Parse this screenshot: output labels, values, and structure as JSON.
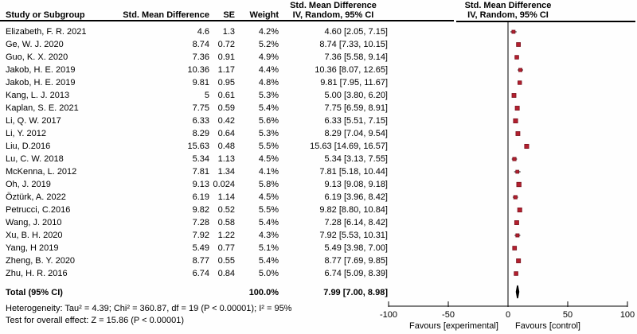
{
  "headers": {
    "group": "Std. Mean Difference",
    "sub": "IV, Random, 95% CI",
    "study": "Study or Subgroup",
    "smd": "Std. Mean Difference",
    "se": "SE",
    "weight": "Weight"
  },
  "colors": {
    "marker_fill": "#b41f2e",
    "marker_stroke": "#7a1420",
    "diamond": "#000000",
    "line": "#000000"
  },
  "chart_data": {
    "type": "forest",
    "effect_measure": "Std. Mean Difference",
    "method": "IV, Random, 95% CI",
    "studies": [
      {
        "name": "Elizabeth, F. R. 2021",
        "smd": "4.6",
        "se": "1.3",
        "weight": "4.2%",
        "ci": "4.60 [2.05, 7.15]",
        "est": 4.6,
        "lo": 2.05,
        "hi": 7.15,
        "w": 4.2
      },
      {
        "name": "Ge, W. J. 2020",
        "smd": "8.74",
        "se": "0.72",
        "weight": "5.2%",
        "ci": "8.74 [7.33, 10.15]",
        "est": 8.74,
        "lo": 7.33,
        "hi": 10.15,
        "w": 5.2
      },
      {
        "name": "Guo, K. X. 2020",
        "smd": "7.36",
        "se": "0.91",
        "weight": "4.9%",
        "ci": "7.36 [5.58, 9.14]",
        "est": 7.36,
        "lo": 5.58,
        "hi": 9.14,
        "w": 4.9
      },
      {
        "name": "Jakob, H. E. 2019",
        "smd": "10.36",
        "se": "1.17",
        "weight": "4.4%",
        "ci": "10.36 [8.07, 12.65]",
        "est": 10.36,
        "lo": 8.07,
        "hi": 12.65,
        "w": 4.4
      },
      {
        "name": "Jakob, H. E. 2019",
        "smd": "9.81",
        "se": "0.95",
        "weight": "4.8%",
        "ci": "9.81 [7.95, 11.67]",
        "est": 9.81,
        "lo": 7.95,
        "hi": 11.67,
        "w": 4.8
      },
      {
        "name": "Kang, L. J. 2013",
        "smd": "5",
        "se": "0.61",
        "weight": "5.3%",
        "ci": "5.00 [3.80, 6.20]",
        "est": 5.0,
        "lo": 3.8,
        "hi": 6.2,
        "w": 5.3
      },
      {
        "name": "Kaplan, S. E. 2021",
        "smd": "7.75",
        "se": "0.59",
        "weight": "5.4%",
        "ci": "7.75 [6.59, 8.91]",
        "est": 7.75,
        "lo": 6.59,
        "hi": 8.91,
        "w": 5.4
      },
      {
        "name": "Li, Q. W. 2017",
        "smd": "6.33",
        "se": "0.42",
        "weight": "5.6%",
        "ci": "6.33 [5.51, 7.15]",
        "est": 6.33,
        "lo": 5.51,
        "hi": 7.15,
        "w": 5.6
      },
      {
        "name": "Li, Y. 2012",
        "smd": "8.29",
        "se": "0.64",
        "weight": "5.3%",
        "ci": "8.29 [7.04, 9.54]",
        "est": 8.29,
        "lo": 7.04,
        "hi": 9.54,
        "w": 5.3
      },
      {
        "name": "Liu, D.2016",
        "smd": "15.63",
        "se": "0.48",
        "weight": "5.5%",
        "ci": "15.63 [14.69, 16.57]",
        "est": 15.63,
        "lo": 14.69,
        "hi": 16.57,
        "w": 5.5
      },
      {
        "name": "Lu, C. W. 2018",
        "smd": "5.34",
        "se": "1.13",
        "weight": "4.5%",
        "ci": "5.34 [3.13, 7.55]",
        "est": 5.34,
        "lo": 3.13,
        "hi": 7.55,
        "w": 4.5
      },
      {
        "name": "McKenna, L. 2012",
        "smd": "7.81",
        "se": "1.34",
        "weight": "4.1%",
        "ci": "7.81 [5.18, 10.44]",
        "est": 7.81,
        "lo": 5.18,
        "hi": 10.44,
        "w": 4.1
      },
      {
        "name": "Oh, J. 2019",
        "smd": "9.13",
        "se": "0.024",
        "weight": "5.8%",
        "ci": "9.13 [9.08, 9.18]",
        "est": 9.13,
        "lo": 9.08,
        "hi": 9.18,
        "w": 5.8
      },
      {
        "name": "Öztürk, A. 2022",
        "smd": "6.19",
        "se": "1.14",
        "weight": "4.5%",
        "ci": "6.19 [3.96, 8.42]",
        "est": 6.19,
        "lo": 3.96,
        "hi": 8.42,
        "w": 4.5
      },
      {
        "name": "Petrucci, C.2016",
        "smd": "9.82",
        "se": "0.52",
        "weight": "5.5%",
        "ci": "9.82 [8.80, 10.84]",
        "est": 9.82,
        "lo": 8.8,
        "hi": 10.84,
        "w": 5.5
      },
      {
        "name": "Wang, J. 2010",
        "smd": "7.28",
        "se": "0.58",
        "weight": "5.4%",
        "ci": "7.28 [6.14, 8.42]",
        "est": 7.28,
        "lo": 6.14,
        "hi": 8.42,
        "w": 5.4
      },
      {
        "name": "Xu, B. H. 2020",
        "smd": "7.92",
        "se": "1.22",
        "weight": "4.3%",
        "ci": "7.92 [5.53, 10.31]",
        "est": 7.92,
        "lo": 5.53,
        "hi": 10.31,
        "w": 4.3
      },
      {
        "name": "Yang, H 2019",
        "smd": "5.49",
        "se": "0.77",
        "weight": "5.1%",
        "ci": "5.49 [3.98, 7.00]",
        "est": 5.49,
        "lo": 3.98,
        "hi": 7.0,
        "w": 5.1
      },
      {
        "name": "Zheng, B. Y. 2020",
        "smd": "8.77",
        "se": "0.55",
        "weight": "5.4%",
        "ci": "8.77 [7.69, 9.85]",
        "est": 8.77,
        "lo": 7.69,
        "hi": 9.85,
        "w": 5.4
      },
      {
        "name": "Zhu, H. R. 2016",
        "smd": "6.74",
        "se": "0.84",
        "weight": "5.0%",
        "ci": "6.74 [5.09, 8.39]",
        "est": 6.74,
        "lo": 5.09,
        "hi": 8.39,
        "w": 5.0
      }
    ],
    "total": {
      "label": "Total (95% CI)",
      "weight": "100.0%",
      "ci": "7.99 [7.00, 8.98]",
      "est": 7.99,
      "lo": 7.0,
      "hi": 8.98
    },
    "heterogeneity": "Heterogeneity: Tau² = 4.39; Chi² = 360.87, df = 19 (P < 0.00001); I² = 95%",
    "overall_test": "Test for overall effect: Z = 15.86 (P < 0.00001)",
    "xaxis": {
      "min": -100,
      "max": 100,
      "ticks": [
        -100,
        -50,
        0,
        50,
        100
      ],
      "favours_left": "Favours [experimental]",
      "favours_right": "Favours [control]"
    }
  }
}
